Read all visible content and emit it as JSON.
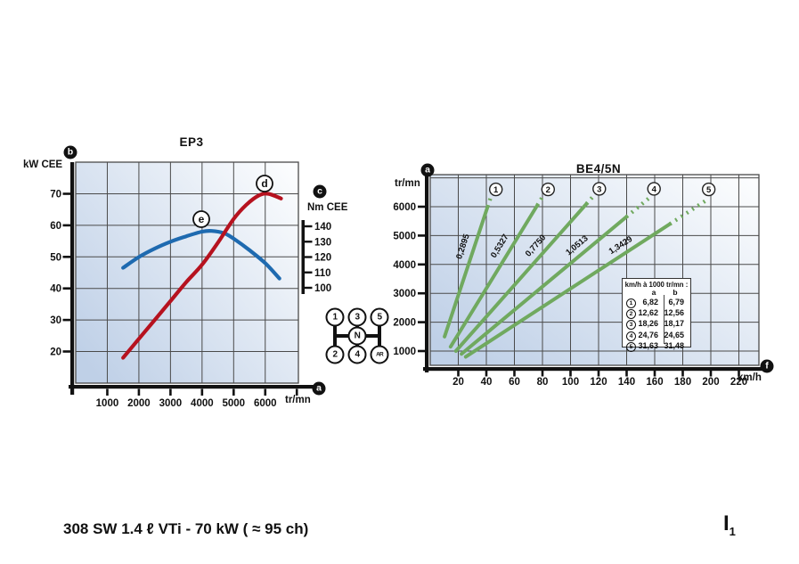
{
  "page": {
    "caption": "308 SW 1.4 ℓ VTi - 70 kW ( ≈ 95 ch)",
    "page_code_main": "I",
    "page_code_sub": "1"
  },
  "colors": {
    "power_curve": "#b6121f",
    "torque_curve": "#1e6ab0",
    "gear_lines": "#70a95f",
    "grid": "#4a4a4a",
    "axis": "#111111",
    "plot_gradient_left": "#bfd0e7",
    "plot_gradient_right": "#fcfdfe"
  },
  "badges": {
    "left_chart_top": "b",
    "left_chart_xaxis": "a",
    "torque_axis": "c",
    "right_chart_top": "a",
    "right_chart_xaxis": "f"
  },
  "gearshift": {
    "top_row": [
      "1",
      "3",
      "5"
    ],
    "middle": "N",
    "bottom_row": [
      "2",
      "4",
      "AR"
    ]
  },
  "chart_data": [
    {
      "type": "line",
      "title": "EP3",
      "xlabel": "tr/mn",
      "ylabel_left": "kW CEE",
      "ylabel_right": "Nm CEE",
      "x_ticks": [
        1000,
        2000,
        3000,
        4000,
        5000,
        6000
      ],
      "xlim": [
        0,
        7050
      ],
      "y_left_ticks": [
        20,
        30,
        40,
        50,
        60,
        70
      ],
      "ylim_left": [
        10,
        80
      ],
      "y_right_ticks": [
        100,
        110,
        120,
        130,
        140
      ],
      "grid": true,
      "legend": "none",
      "series": [
        {
          "name": "power",
          "unit": "kW",
          "axis": "left",
          "marker_label": "d",
          "points": [
            [
              1500,
              18
            ],
            [
              2000,
              24
            ],
            [
              2500,
              30
            ],
            [
              3000,
              36
            ],
            [
              3500,
              42
            ],
            [
              4000,
              47.5
            ],
            [
              4500,
              54.5
            ],
            [
              5000,
              62
            ],
            [
              5400,
              66.5
            ],
            [
              5800,
              69.5
            ],
            [
              6100,
              70
            ],
            [
              6500,
              68.5
            ]
          ]
        },
        {
          "name": "torque",
          "unit": "Nm",
          "axis": "right",
          "marker_label": "e",
          "points": [
            [
              1500,
              113
            ],
            [
              2000,
              120
            ],
            [
              2500,
              125.5
            ],
            [
              3000,
              130
            ],
            [
              3500,
              133.5
            ],
            [
              4000,
              136.5
            ],
            [
              4300,
              137
            ],
            [
              4700,
              135.5
            ],
            [
              5000,
              132
            ],
            [
              5500,
              124.5
            ],
            [
              6000,
              116
            ],
            [
              6450,
              106
            ]
          ]
        }
      ]
    },
    {
      "type": "line",
      "title": "BE4/5N",
      "xlabel": "km/h",
      "ylabel": "tr/mn",
      "x_ticks": [
        20,
        40,
        60,
        80,
        100,
        120,
        140,
        160,
        180,
        200,
        220
      ],
      "xlim": [
        0,
        234
      ],
      "y_ticks": [
        1000,
        2000,
        3000,
        4000,
        5000,
        6000
      ],
      "ylim": [
        500,
        7110
      ],
      "grid": true,
      "gears": [
        {
          "num": "1",
          "ratio_label": "0,2895",
          "kmh_per_1000": 6.82,
          "start_rpm": 1500,
          "solid_end_rpm": 6000,
          "dash_end_rpm": 6450,
          "badge_kmh": 46.8,
          "badge_rpm": 6600
        },
        {
          "num": "2",
          "ratio_label": "0,5327",
          "kmh_per_1000": 12.62,
          "start_rpm": 1150,
          "solid_end_rpm": 6050,
          "dash_end_rpm": 6400,
          "badge_kmh": 84,
          "badge_rpm": 6600
        },
        {
          "num": "3",
          "ratio_label": "0,7750",
          "kmh_per_1000": 18.26,
          "start_rpm": 1000,
          "solid_end_rpm": 6100,
          "dash_end_rpm": 6450,
          "badge_kmh": 120.5,
          "badge_rpm": 6620
        },
        {
          "num": "4",
          "ratio_label": "1,0513",
          "kmh_per_1000": 24.76,
          "start_rpm": 900,
          "solid_end_rpm": 5650,
          "dash_end_rpm": 6350,
          "badge_kmh": 159.5,
          "badge_rpm": 6620
        },
        {
          "num": "5",
          "ratio_label": "1,3429",
          "kmh_per_1000": 31.63,
          "start_rpm": 800,
          "solid_end_rpm": 5400,
          "dash_end_rpm": 6250,
          "badge_kmh": 198.5,
          "badge_rpm": 6600
        }
      ],
      "table": {
        "title": "km/h à 1000 tr/mn :",
        "columns": [
          "a",
          "b"
        ],
        "rows": [
          [
            "1",
            "6,82",
            "6,79"
          ],
          [
            "2",
            "12,62",
            "12,56"
          ],
          [
            "3",
            "18,26",
            "18,17"
          ],
          [
            "4",
            "24,76",
            "24,65"
          ],
          [
            "5",
            "31,63",
            "31,48"
          ]
        ]
      }
    }
  ]
}
